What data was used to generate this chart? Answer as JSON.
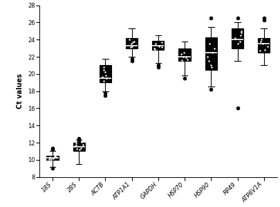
{
  "categories": [
    "18S",
    "28S",
    "ACTB",
    "ATP1A1",
    "GAPDH",
    "HSP70",
    "HSP90",
    "RP49",
    "ATP6V1A"
  ],
  "ylabel": "Ct values",
  "ylim": [
    8,
    28
  ],
  "yticks": [
    8,
    10,
    12,
    14,
    16,
    18,
    20,
    22,
    24,
    26,
    28
  ],
  "boxes": [
    {
      "med": 10.2,
      "q1": 10.0,
      "q3": 10.5,
      "whislo": 9.2,
      "whishi": 11.0,
      "fliers_out": [
        11.2,
        11.4,
        9.0
      ],
      "fliers_in": [
        10.1,
        10.3,
        10.4,
        10.15,
        10.25,
        10.35,
        10.05,
        10.45
      ]
    },
    {
      "med": 11.5,
      "q1": 11.0,
      "q3": 12.0,
      "whislo": 9.5,
      "whishi": 12.3,
      "fliers_out": [
        12.5,
        12.4,
        12.2
      ],
      "fliers_in": [
        11.2,
        11.4,
        11.6,
        11.8,
        12.1,
        11.3,
        11.7,
        11.9
      ]
    },
    {
      "med": 19.5,
      "q1": 19.0,
      "q3": 21.0,
      "whislo": 18.0,
      "whishi": 21.8,
      "fliers_out": [
        17.8,
        17.5
      ],
      "fliers_in": [
        19.2,
        19.8,
        20.2,
        20.5,
        19.5,
        19.7,
        20.8
      ]
    },
    {
      "med": 23.3,
      "q1": 23.0,
      "q3": 24.2,
      "whislo": 22.0,
      "whishi": 25.3,
      "fliers_out": [
        21.5,
        21.8
      ],
      "fliers_in": [
        23.1,
        23.5,
        23.8,
        24.0,
        23.2,
        23.7
      ]
    },
    {
      "med": 23.3,
      "q1": 22.8,
      "q3": 23.9,
      "whislo": 21.3,
      "whishi": 24.5,
      "fliers_out": [
        21.0,
        20.8
      ],
      "fliers_in": [
        23.0,
        23.2,
        23.5,
        22.9,
        23.7,
        23.1
      ]
    },
    {
      "med": 22.0,
      "q1": 21.5,
      "q3": 23.0,
      "whislo": 19.8,
      "whishi": 23.8,
      "fliers_out": [
        19.5
      ],
      "fliers_in": [
        21.7,
        22.0,
        22.3,
        21.9,
        22.5,
        21.6
      ]
    },
    {
      "med": 22.5,
      "q1": 20.5,
      "q3": 24.3,
      "whislo": 18.5,
      "whishi": 25.5,
      "fliers_out": [
        26.5,
        18.2
      ],
      "fliers_in": [
        21.0,
        22.0,
        23.0,
        21.5,
        22.5,
        23.5,
        20.8
      ]
    },
    {
      "med": 24.0,
      "q1": 23.0,
      "q3": 25.3,
      "whislo": 21.5,
      "whishi": 26.0,
      "fliers_out": [
        26.5,
        16.0
      ],
      "fliers_in": [
        23.5,
        24.2,
        24.8,
        23.8,
        25.0,
        24.5
      ]
    },
    {
      "med": 23.5,
      "q1": 22.5,
      "q3": 24.2,
      "whislo": 21.0,
      "whishi": 25.3,
      "fliers_out": [
        26.5,
        26.3
      ],
      "fliers_in": [
        22.8,
        23.2,
        23.8,
        24.0,
        22.7,
        23.5
      ]
    }
  ],
  "box_color": "#000000",
  "median_color": "#ffffff",
  "whisker_color": "#000000",
  "flier_color": "#000000",
  "background_color": "#ffffff",
  "label_fontsize": 7,
  "tick_fontsize": 6,
  "box_width": 0.45,
  "scatter_dot_size": 8,
  "scatter_dot_color": "#ffffff",
  "flier_dot_size": 3
}
